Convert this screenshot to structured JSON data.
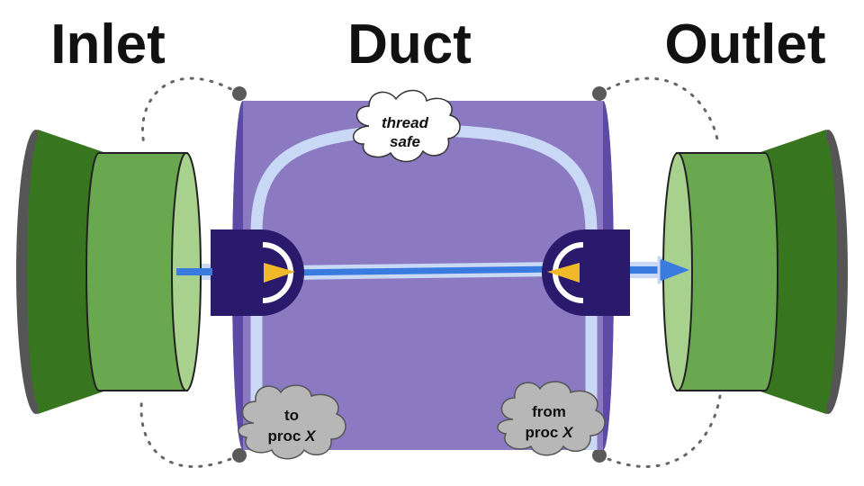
{
  "titles": {
    "inlet": "Inlet",
    "duct": "Duct",
    "outlet": "Outlet"
  },
  "clouds": {
    "top": {
      "line1": "thread",
      "line2": "safe"
    },
    "bottom_left": {
      "line1": "to",
      "line2_prefix": "proc ",
      "line2_var": "X"
    },
    "bottom_right": {
      "line1": "from",
      "line2_prefix": "proc ",
      "line2_var": "X"
    }
  },
  "colors": {
    "duct_purple": "#8b7ac2",
    "duct_edge": "#5d4aa6",
    "port_navy": "#2a1a6b",
    "flow_blue": "#3a7be0",
    "flow_outline": "#c8d8f5",
    "arrow_yellow": "#f0b929",
    "green_dark": "#37761f",
    "green_mid": "#6aa84f",
    "green_light": "#a9d18e",
    "rim_gray": "#555555",
    "cloud_white": "#ffffff",
    "cloud_gray": "#b7b7b7"
  }
}
